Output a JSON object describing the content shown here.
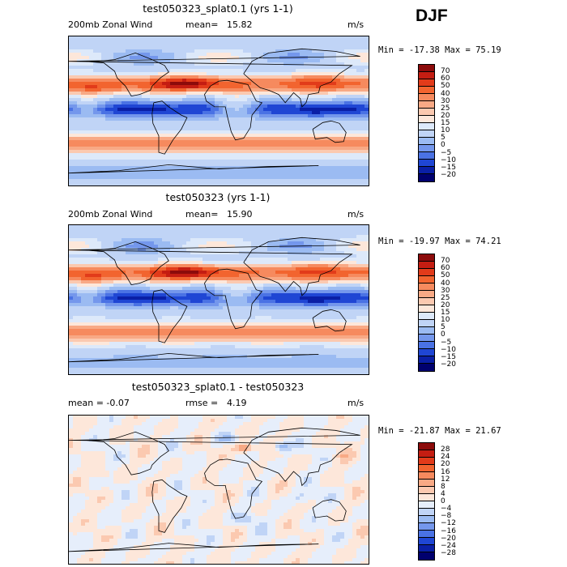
{
  "season": "DJF",
  "panels": [
    {
      "title": "test050323_splat0.1 (yrs 1-1)",
      "label_left": "200mb Zonal Wind",
      "stat_label": "mean=",
      "stat_value": "15.82",
      "units": "m/s",
      "minmax": "Min = -17.38 Max =  75.19",
      "levels": [
        "70",
        "60",
        "50",
        "40",
        "30",
        "25",
        "20",
        "15",
        "10",
        "5",
        "0",
        "−5",
        "−10",
        "−15",
        "−20"
      ],
      "colors": [
        "#8c0b0b",
        "#c41d12",
        "#e23b1a",
        "#f2642f",
        "#f68a5e",
        "#f8a985",
        "#fbc9b0",
        "#fde7da",
        "#dde9fa",
        "#c0d4f6",
        "#9bbbf2",
        "#7497ec",
        "#4a72e4",
        "#1f46d4",
        "#0a1fa6",
        "#00006e"
      ],
      "field": "zonal"
    },
    {
      "title": "test050323 (yrs 1-1)",
      "label_left": "200mb Zonal Wind",
      "stat_label": "mean=",
      "stat_value": "15.90",
      "units": "m/s",
      "minmax": "Min = -19.97 Max =  74.21",
      "levels": [
        "70",
        "60",
        "50",
        "40",
        "30",
        "25",
        "20",
        "15",
        "10",
        "5",
        "0",
        "−5",
        "−10",
        "−15",
        "−20"
      ],
      "colors": [
        "#8c0b0b",
        "#c41d12",
        "#e23b1a",
        "#f2642f",
        "#f68a5e",
        "#f8a985",
        "#fbc9b0",
        "#fde7da",
        "#dde9fa",
        "#c0d4f6",
        "#9bbbf2",
        "#7497ec",
        "#4a72e4",
        "#1f46d4",
        "#0a1fa6",
        "#00006e"
      ],
      "field": "zonal"
    },
    {
      "title": "test050323_splat0.1 - test050323",
      "label_left": "mean =   -0.07",
      "stat_label": "rmse =",
      "stat_value": "4.19",
      "units": "m/s",
      "minmax": "Min = -21.87 Max =  21.67",
      "levels": [
        "28",
        "24",
        "20",
        "16",
        "12",
        "8",
        "4",
        "0",
        "−4",
        "−8",
        "−12",
        "−16",
        "−20",
        "−24",
        "−28"
      ],
      "colors": [
        "#8c0b0b",
        "#c41d12",
        "#e23b1a",
        "#f2642f",
        "#f68a5e",
        "#f8a985",
        "#fbc9b0",
        "#fde7da",
        "#e6eefb",
        "#c0d4f6",
        "#9bbbf2",
        "#7497ec",
        "#4a72e4",
        "#1f46d4",
        "#0a1fa6",
        "#00006e"
      ],
      "field": "diff"
    }
  ]
}
